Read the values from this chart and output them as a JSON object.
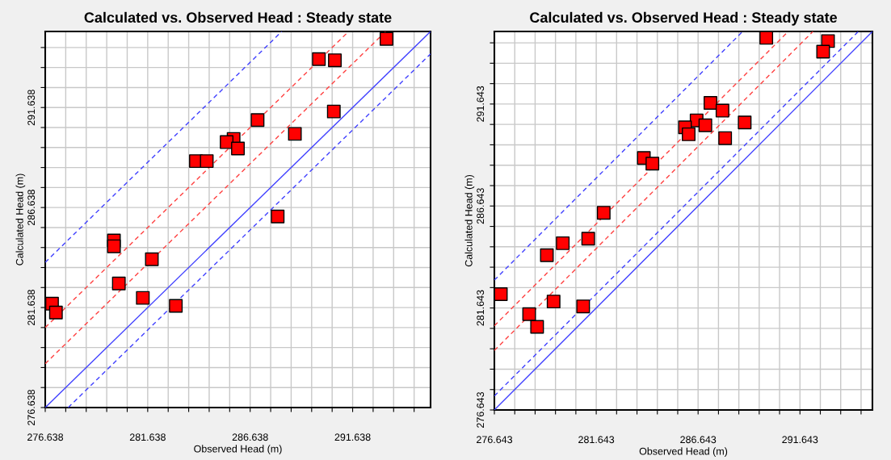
{
  "chart_data": [
    {
      "type": "scatter",
      "title": "Calculated vs. Observed Head : Steady state",
      "xlabel": "Observed Head (m)",
      "ylabel": "Calculated Head (m)",
      "xlim": [
        276.638,
        295.44
      ],
      "ylim": [
        276.638,
        295.44
      ],
      "xticks": [
        276.638,
        {
          "value": 277.638,
          "label": null
        },
        {
          "value": 278.638,
          "label": null
        },
        {
          "value": 279.638,
          "label": null
        },
        {
          "value": 280.638,
          "label": null
        },
        281.638,
        {
          "value": 282.638,
          "label": null
        },
        {
          "value": 283.638,
          "label": null
        },
        {
          "value": 284.638,
          "label": null
        },
        {
          "value": 285.638,
          "label": null
        },
        286.638,
        {
          "value": 287.638,
          "label": null
        },
        {
          "value": 288.638,
          "label": null
        },
        {
          "value": 289.638,
          "label": null
        },
        {
          "value": 290.638,
          "label": null
        },
        291.638,
        {
          "value": 292.638,
          "label": null
        },
        {
          "value": 293.638,
          "label": null
        },
        {
          "value": 294.638,
          "label": null
        }
      ],
      "yticks": [
        276.638,
        {
          "value": 277.638,
          "label": null
        },
        {
          "value": 278.638,
          "label": null
        },
        {
          "value": 279.638,
          "label": null
        },
        {
          "value": 280.638,
          "label": null
        },
        281.638,
        {
          "value": 282.638,
          "label": null
        },
        {
          "value": 283.638,
          "label": null
        },
        {
          "value": 284.638,
          "label": null
        },
        {
          "value": 285.638,
          "label": null
        },
        286.638,
        {
          "value": 287.638,
          "label": null
        },
        {
          "value": 288.638,
          "label": null
        },
        {
          "value": 289.638,
          "label": null
        },
        {
          "value": 290.638,
          "label": null
        },
        291.638,
        {
          "value": 292.638,
          "label": null
        },
        {
          "value": 293.638,
          "label": null
        },
        {
          "value": 294.638,
          "label": null
        }
      ],
      "grid": true,
      "legend": false,
      "marker": "square",
      "series": [
        {
          "type": "line",
          "color": "#4040ff",
          "line_style": "solid",
          "marker": "none",
          "x": [
            276.638,
            295.44
          ],
          "values": [
            276.638,
            295.44
          ]
        },
        {
          "type": "line",
          "color": "#4040ff",
          "line_style": "dashed",
          "marker": "none",
          "x": [
            277.76,
            295.44
          ],
          "values": [
            276.638,
            294.32
          ]
        },
        {
          "type": "line",
          "color": "#ff4040",
          "line_style": "dashed",
          "marker": "none",
          "x": [
            276.638,
            293.25
          ],
          "values": [
            278.83,
            295.44
          ]
        },
        {
          "type": "line",
          "color": "#ff4040",
          "line_style": "dashed",
          "marker": "none",
          "x": [
            276.638,
            291.44
          ],
          "values": [
            280.64,
            295.44
          ]
        },
        {
          "type": "line",
          "color": "#4040ff",
          "line_style": "dashed",
          "marker": "none",
          "x": [
            276.638,
            288.18
          ],
          "values": [
            283.9,
            295.44
          ]
        },
        {
          "type": "scatter",
          "color": "#ff0000",
          "x": [
            293.29,
            289.99,
            290.77,
            290.72,
            287.0,
            288.82,
            285.83,
            285.49,
            286.04,
            283.99,
            284.52,
            287.98,
            279.99,
            279.99,
            281.84,
            280.23,
            281.4,
            276.97,
            277.16,
            283.01
          ],
          "values": [
            295.07,
            294.06,
            294.0,
            291.44,
            291.01,
            290.32,
            290.07,
            289.91,
            289.59,
            288.96,
            288.96,
            286.19,
            284.99,
            284.7,
            284.05,
            282.84,
            282.12,
            281.83,
            281.39,
            281.72
          ]
        }
      ]
    },
    {
      "type": "scatter",
      "title": "Calculated vs. Observed Head : Steady state",
      "xlabel": "Observed Head (m)",
      "ylabel": "Calculated Head (m)",
      "xlim": [
        276.643,
        295.2
      ],
      "ylim": [
        276.643,
        295.2
      ],
      "xticks": [
        276.643,
        {
          "value": 277.643,
          "label": null
        },
        {
          "value": 278.643,
          "label": null
        },
        {
          "value": 279.643,
          "label": null
        },
        {
          "value": 280.643,
          "label": null
        },
        281.643,
        {
          "value": 282.643,
          "label": null
        },
        {
          "value": 283.643,
          "label": null
        },
        {
          "value": 284.643,
          "label": null
        },
        {
          "value": 285.643,
          "label": null
        },
        286.643,
        {
          "value": 287.643,
          "label": null
        },
        {
          "value": 288.643,
          "label": null
        },
        {
          "value": 289.643,
          "label": null
        },
        {
          "value": 290.643,
          "label": null
        },
        291.643,
        {
          "value": 292.643,
          "label": null
        },
        {
          "value": 293.643,
          "label": null
        },
        {
          "value": 294.643,
          "label": null
        }
      ],
      "yticks": [
        276.643,
        {
          "value": 277.643,
          "label": null
        },
        {
          "value": 278.643,
          "label": null
        },
        {
          "value": 279.643,
          "label": null
        },
        {
          "value": 280.643,
          "label": null
        },
        281.643,
        {
          "value": 282.643,
          "label": null
        },
        {
          "value": 283.643,
          "label": null
        },
        {
          "value": 284.643,
          "label": null
        },
        {
          "value": 285.643,
          "label": null
        },
        286.643,
        {
          "value": 287.643,
          "label": null
        },
        {
          "value": 288.643,
          "label": null
        },
        {
          "value": 289.643,
          "label": null
        },
        {
          "value": 290.643,
          "label": null
        },
        291.643,
        {
          "value": 292.643,
          "label": null
        },
        {
          "value": 293.643,
          "label": null
        },
        {
          "value": 294.643,
          "label": null
        }
      ],
      "grid": true,
      "legend": false,
      "marker": "square",
      "series": [
        {
          "type": "line",
          "color": "#4040ff",
          "line_style": "solid",
          "marker": "none",
          "x": [
            276.643,
            295.2
          ],
          "values": [
            276.643,
            295.2
          ]
        },
        {
          "type": "line",
          "color": "#4040ff",
          "line_style": "dashed",
          "marker": "none",
          "x": [
            276.643,
            294.51
          ],
          "values": [
            277.33,
            295.2
          ]
        },
        {
          "type": "line",
          "color": "#ff4040",
          "line_style": "dashed",
          "marker": "none",
          "x": [
            276.643,
            292.28
          ],
          "values": [
            279.56,
            295.2
          ]
        },
        {
          "type": "line",
          "color": "#ff4040",
          "line_style": "dashed",
          "marker": "none",
          "x": [
            276.643,
            291.07
          ],
          "values": [
            280.77,
            295.2
          ]
        },
        {
          "type": "line",
          "color": "#4040ff",
          "line_style": "dashed",
          "marker": "none",
          "x": [
            276.643,
            288.83
          ],
          "values": [
            283.01,
            295.2
          ]
        },
        {
          "type": "scatter",
          "color": "#ff0000",
          "x": [
            289.99,
            293.02,
            292.78,
            287.25,
            287.84,
            286.57,
            287.0,
            286.0,
            286.18,
            288.93,
            287.97,
            283.98,
            284.4,
            282.01,
            281.25,
            280.0,
            279.22,
            276.96,
            279.55,
            281.0,
            278.35,
            278.74
          ],
          "values": [
            294.89,
            294.73,
            294.21,
            291.7,
            291.32,
            290.84,
            290.6,
            290.5,
            290.16,
            290.74,
            289.97,
            289.0,
            288.72,
            286.31,
            285.04,
            284.82,
            284.23,
            282.32,
            281.96,
            281.72,
            281.34,
            280.72
          ]
        }
      ]
    }
  ]
}
